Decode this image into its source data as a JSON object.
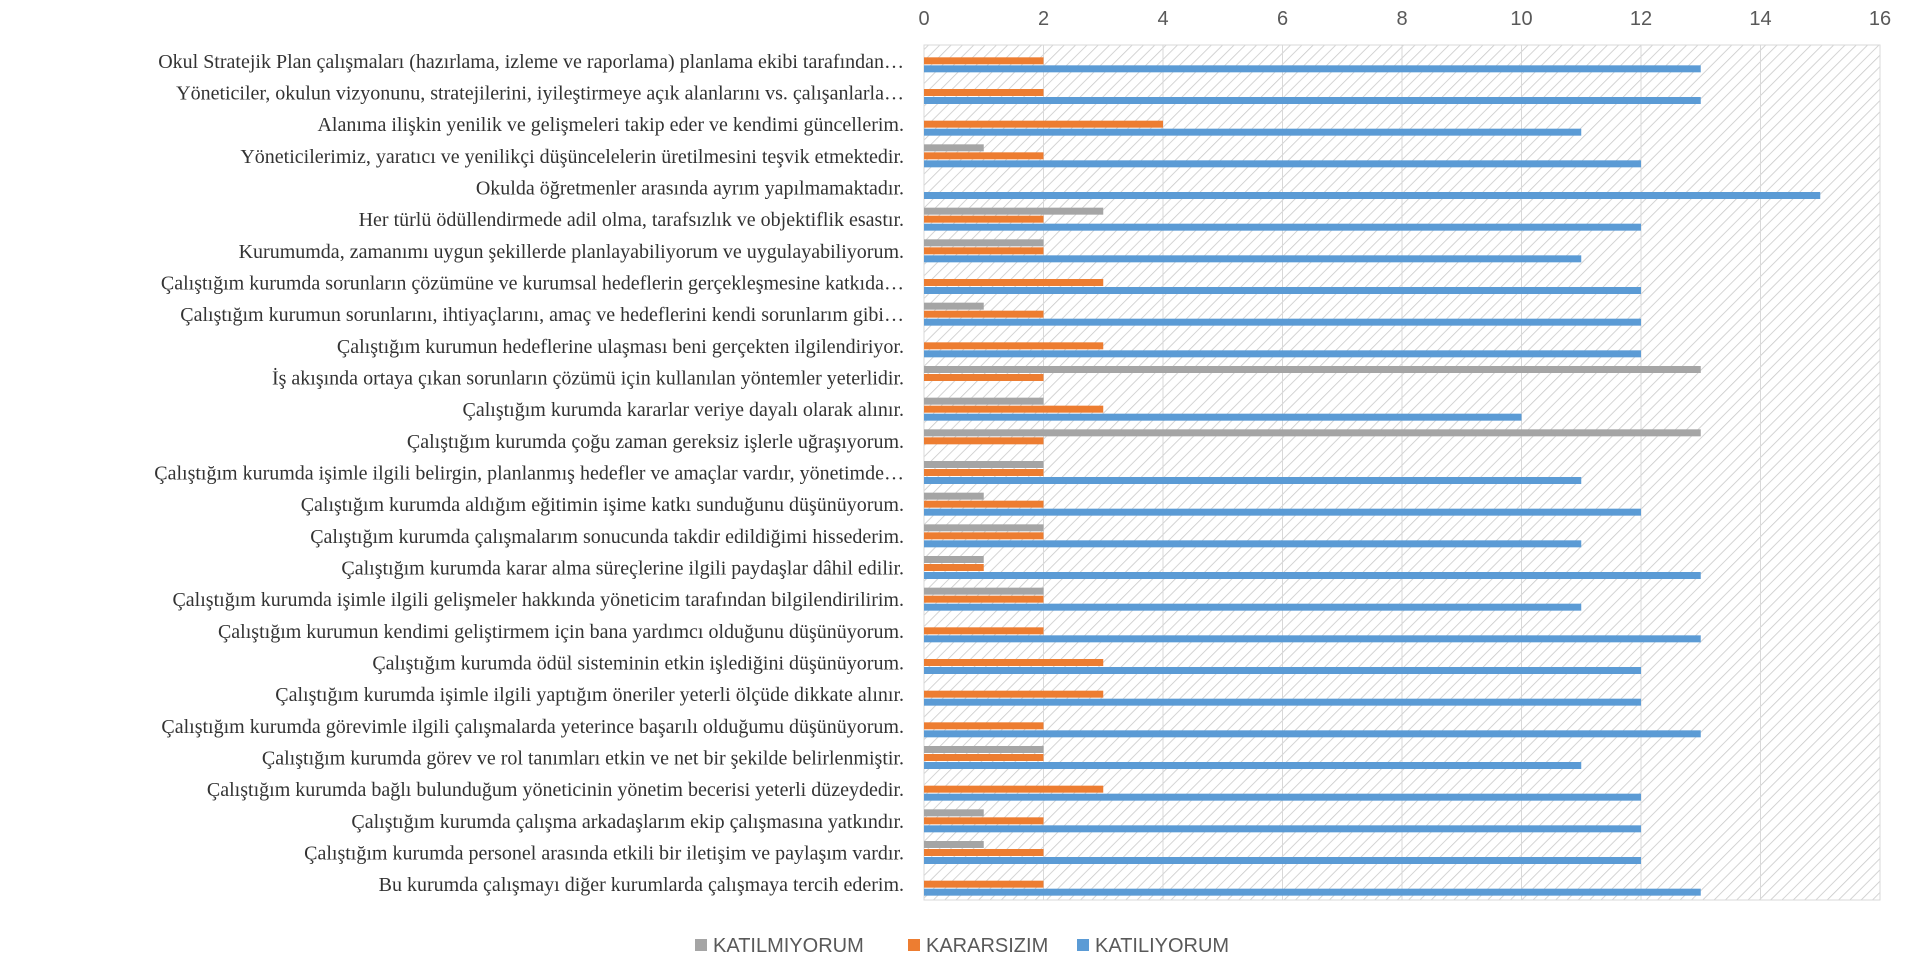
{
  "chart_data": {
    "type": "bar",
    "orientation": "horizontal",
    "categories": [
      "Bu kurumda çalışmayı diğer kurumlarda çalışmaya tercih ederim.",
      "Çalıştığım kurumda personel arasında etkili bir iletişim ve paylaşım vardır.",
      "Çalıştığım kurumda çalışma arkadaşlarım ekip çalışmasına yatkındır.",
      "Çalıştığım kurumda bağlı bulunduğum yöneticinin yönetim becerisi yeterli düzeydedir.",
      "Çalıştığım kurumda görev ve rol tanımları etkin ve net bir şekilde belirlenmiştir.",
      "Çalıştığım kurumda görevimle ilgili çalışmalarda yeterince başarılı olduğumu düşünüyorum.",
      "Çalıştığım kurumda işimle ilgili yaptığım öneriler yeterli ölçüde dikkate alınır.",
      "Çalıştığım kurumda ödül sisteminin etkin işlediğini düşünüyorum.",
      "Çalıştığım kurumun kendimi geliştirmem için bana yardımcı olduğunu düşünüyorum.",
      "Çalıştığım kurumda işimle ilgili gelişmeler hakkında yöneticim tarafından bilgilendirilirim.",
      "Çalıştığım kurumda karar alma süreçlerine ilgili paydaşlar dâhil edilir.",
      "Çalıştığım kurumda çalışmalarım sonucunda takdir edildiğimi hissederim.",
      "Çalıştığım kurumda aldığım eğitimin işime katkı sunduğunu düşünüyorum.",
      "Çalıştığım kurumda işimle ilgili belirgin, planlanmış hedefler ve amaçlar vardır, yönetimde…",
      "Çalıştığım kurumda çoğu zaman gereksiz işlerle uğraşıyorum.",
      "Çalıştığım kurumda kararlar veriye dayalı olarak alınır.",
      "İş akışında ortaya çıkan sorunların çözümü için kullanılan yöntemler yeterlidir.",
      "Çalıştığım kurumun hedeflerine ulaşması beni gerçekten ilgilendiriyor.",
      "Çalıştığım kurumun sorunlarını, ihtiyaçlarını, amaç ve hedeflerini kendi sorunlarım gibi…",
      "Çalıştığım kurumda sorunların çözümüne ve kurumsal hedeflerin gerçekleşmesine katkıda…",
      "Kurumumda, zamanımı uygun şekillerde planlayabiliyorum ve uygulayabiliyorum.",
      "Her türlü ödüllendirmede adil olma, tarafsızlık ve objektiflik esastır.",
      "Okulda öğretmenler arasında ayrım yapılmamaktadır.",
      "Yöneticilerimiz, yaratıcı ve yenilikçi düşüncelelerin üretilmesini teşvik etmektedir.",
      "Alanıma ilişkin yenilik ve gelişmeleri takip eder ve kendimi güncellerim.",
      "Yöneticiler, okulun vizyonunu, stratejilerini, iyileştirmeye açık alanlarını vs. çalışanlarla…",
      "Okul Stratejik Plan çalışmaları (hazırlama, izleme ve raporlama) planlama ekibi tarafından…"
    ],
    "series": [
      {
        "name": "KATILMIYORUM",
        "color": "#a5a5a5",
        "values": [
          0,
          1,
          1,
          0,
          2,
          0,
          0,
          0,
          0,
          2,
          1,
          2,
          1,
          2,
          13,
          2,
          13,
          0,
          1,
          0,
          2,
          3,
          0,
          1,
          0,
          0,
          0
        ]
      },
      {
        "name": "KARARSIZIM",
        "color": "#ed7d31",
        "values": [
          2,
          2,
          2,
          3,
          2,
          2,
          3,
          3,
          2,
          2,
          1,
          2,
          2,
          2,
          2,
          3,
          2,
          3,
          2,
          3,
          2,
          2,
          0,
          2,
          4,
          2,
          2
        ]
      },
      {
        "name": "KATILIYORUM",
        "color": "#5b9bd5",
        "values": [
          13,
          12,
          12,
          12,
          11,
          13,
          12,
          12,
          13,
          11,
          13,
          11,
          12,
          11,
          0,
          10,
          0,
          12,
          12,
          12,
          11,
          12,
          15,
          12,
          11,
          13,
          13
        ]
      }
    ],
    "xlim": [
      0,
      16
    ],
    "xticks": [
      0,
      2,
      4,
      6,
      8,
      10,
      12,
      14,
      16
    ],
    "xaxis_position": "top",
    "legend_position": "bottom",
    "plot_background": "diagonal hatch",
    "grid": true,
    "colors": {
      "hatch": "#c9c9c9",
      "gridline": "#d9d9d9",
      "category_text": "#333333",
      "tick_text": "#595959"
    }
  }
}
